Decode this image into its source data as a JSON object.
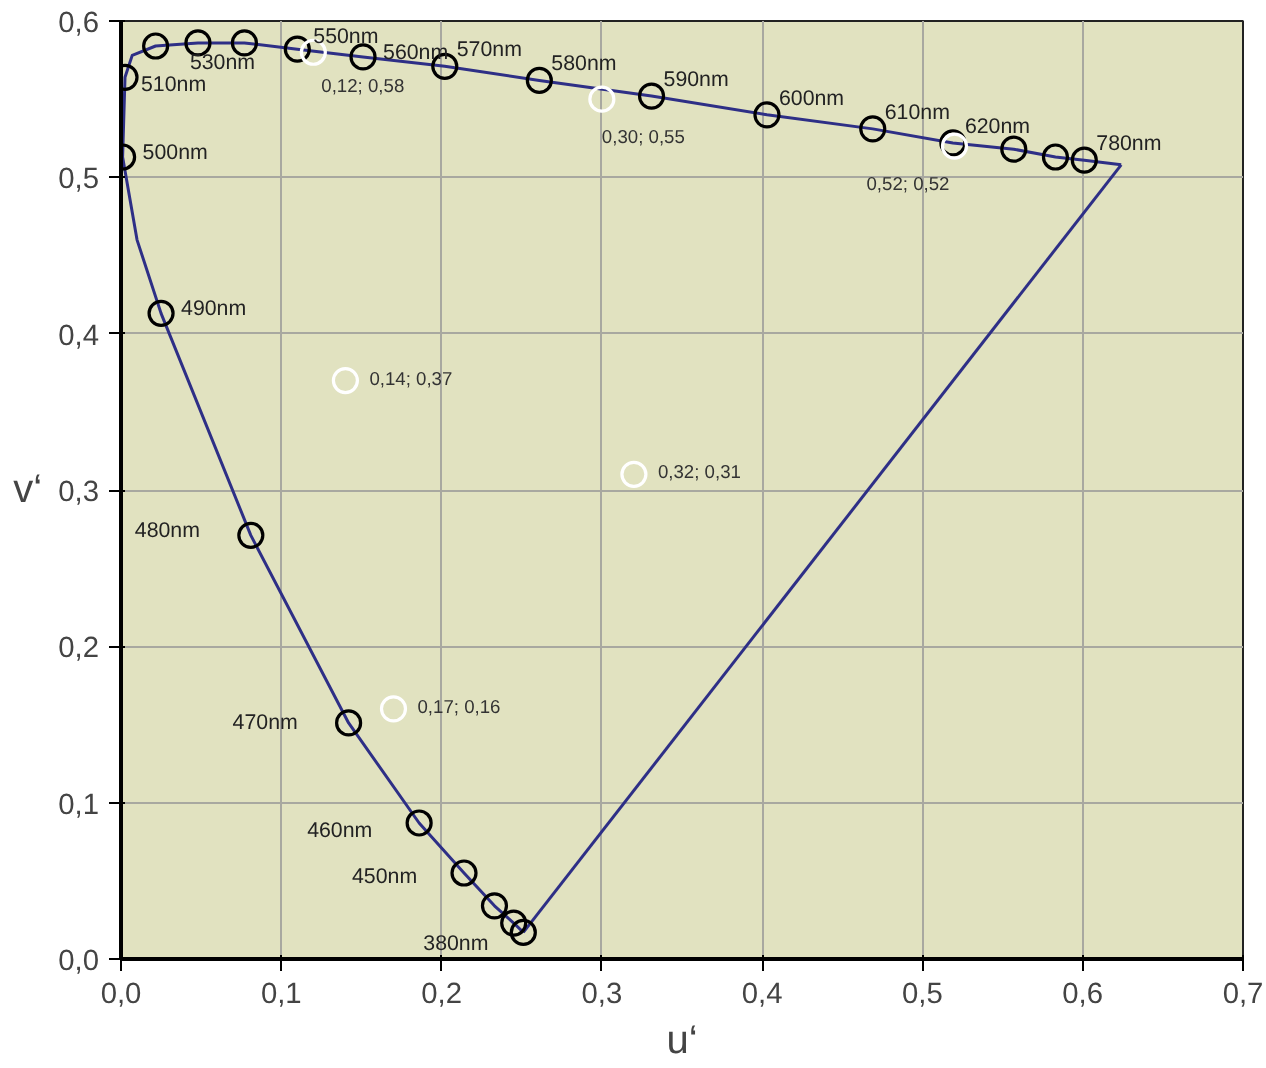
{
  "chart_data": {
    "type": "scatter",
    "xlabel": "u‘",
    "ylabel": "v‘",
    "xlim": [
      0,
      0.7
    ],
    "ylim": [
      0,
      0.6
    ],
    "xticks": [
      {
        "value": 0,
        "label": "0,0"
      },
      {
        "value": 0.1,
        "label": "0,1"
      },
      {
        "value": 0.2,
        "label": "0,2"
      },
      {
        "value": 0.3,
        "label": "0,3"
      },
      {
        "value": 0.4,
        "label": "0,4"
      },
      {
        "value": 0.5,
        "label": "0,5"
      },
      {
        "value": 0.6,
        "label": "0,6"
      },
      {
        "value": 0.7,
        "label": "0,7"
      }
    ],
    "yticks": [
      {
        "value": 0,
        "label": "0,0"
      },
      {
        "value": 0.1,
        "label": "0,1"
      },
      {
        "value": 0.2,
        "label": "0,2"
      },
      {
        "value": 0.3,
        "label": "0,3"
      },
      {
        "value": 0.4,
        "label": "0,4"
      },
      {
        "value": 0.5,
        "label": "0,5"
      },
      {
        "value": 0.6,
        "label": "0,6"
      }
    ],
    "grid": true,
    "series": [
      {
        "type": "line",
        "color": "#2e2f86",
        "marker": "none",
        "x": [
          0.251,
          0.245,
          0.233,
          0.214,
          0.186,
          0.142,
          0.081,
          0.025,
          0.01,
          0.001,
          0.0025,
          0.007,
          0.0216,
          0.048,
          0.077,
          0.11,
          0.151,
          0.202,
          0.261,
          0.331,
          0.403,
          0.469,
          0.519,
          0.557,
          0.583,
          0.601,
          0.624
        ],
        "values": [
          0.017,
          0.023,
          0.034,
          0.055,
          0.087,
          0.151,
          0.271,
          0.413,
          0.46,
          0.513,
          0.564,
          0.578,
          0.584,
          0.586,
          0.586,
          0.582,
          0.577,
          0.571,
          0.562,
          0.552,
          0.54,
          0.531,
          0.522,
          0.518,
          0.513,
          0.511,
          0.508
        ]
      },
      {
        "type": "line",
        "color": "#2e2f86",
        "marker": "none",
        "x": [
          0.251,
          0.624
        ],
        "values": [
          0.017,
          0.508
        ]
      },
      {
        "color": "#000000",
        "marker": "circle",
        "x": [
          0.251,
          0.245,
          0.233,
          0.214,
          0.186,
          0.142,
          0.081,
          0.025,
          0.001,
          0.0025,
          0.0216,
          0.048,
          0.077,
          0.11,
          0.151,
          0.202,
          0.261,
          0.331,
          0.403,
          0.469,
          0.519,
          0.557,
          0.583,
          0.601
        ],
        "values": [
          0.017,
          0.023,
          0.034,
          0.055,
          0.087,
          0.151,
          0.271,
          0.413,
          0.513,
          0.564,
          0.584,
          0.586,
          0.586,
          0.582,
          0.577,
          0.571,
          0.562,
          0.552,
          0.54,
          0.531,
          0.522,
          0.518,
          0.513,
          0.511
        ]
      },
      {
        "color": "#ffffff",
        "marker": "circle",
        "x": [
          0.12,
          0.3,
          0.52,
          0.14,
          0.32,
          0.17
        ],
        "values": [
          0.58,
          0.55,
          0.52,
          0.37,
          0.31,
          0.16
        ],
        "value_labels": [
          "0,12; 0,58",
          "0,30; 0,55",
          "0,52; 0,52",
          "0,14; 0,37",
          "0,32; 0,31",
          "0,17; 0,16"
        ]
      }
    ],
    "annotations": [
      {
        "text": "380nm",
        "x": 0.251,
        "y": 0.017
      },
      {
        "text": "450nm",
        "x": 0.214,
        "y": 0.055
      },
      {
        "text": "460nm",
        "x": 0.186,
        "y": 0.087
      },
      {
        "text": "470nm",
        "x": 0.142,
        "y": 0.151
      },
      {
        "text": "480nm",
        "x": 0.081,
        "y": 0.271
      },
      {
        "text": "490nm",
        "x": 0.025,
        "y": 0.413
      },
      {
        "text": "500nm",
        "x": 0.001,
        "y": 0.513
      },
      {
        "text": "510nm",
        "x": 0.0025,
        "y": 0.564
      },
      {
        "text": "530nm",
        "x": 0.048,
        "y": 0.586
      },
      {
        "text": "550nm",
        "x": 0.11,
        "y": 0.582
      },
      {
        "text": "560nm",
        "x": 0.151,
        "y": 0.577
      },
      {
        "text": "570nm",
        "x": 0.202,
        "y": 0.571
      },
      {
        "text": "580nm",
        "x": 0.261,
        "y": 0.562
      },
      {
        "text": "590nm",
        "x": 0.331,
        "y": 0.552
      },
      {
        "text": "600nm",
        "x": 0.403,
        "y": 0.54
      },
      {
        "text": "610nm",
        "x": 0.469,
        "y": 0.531
      },
      {
        "text": "620nm",
        "x": 0.519,
        "y": 0.522
      },
      {
        "text": "780nm",
        "x": 0.601,
        "y": 0.511
      }
    ]
  }
}
